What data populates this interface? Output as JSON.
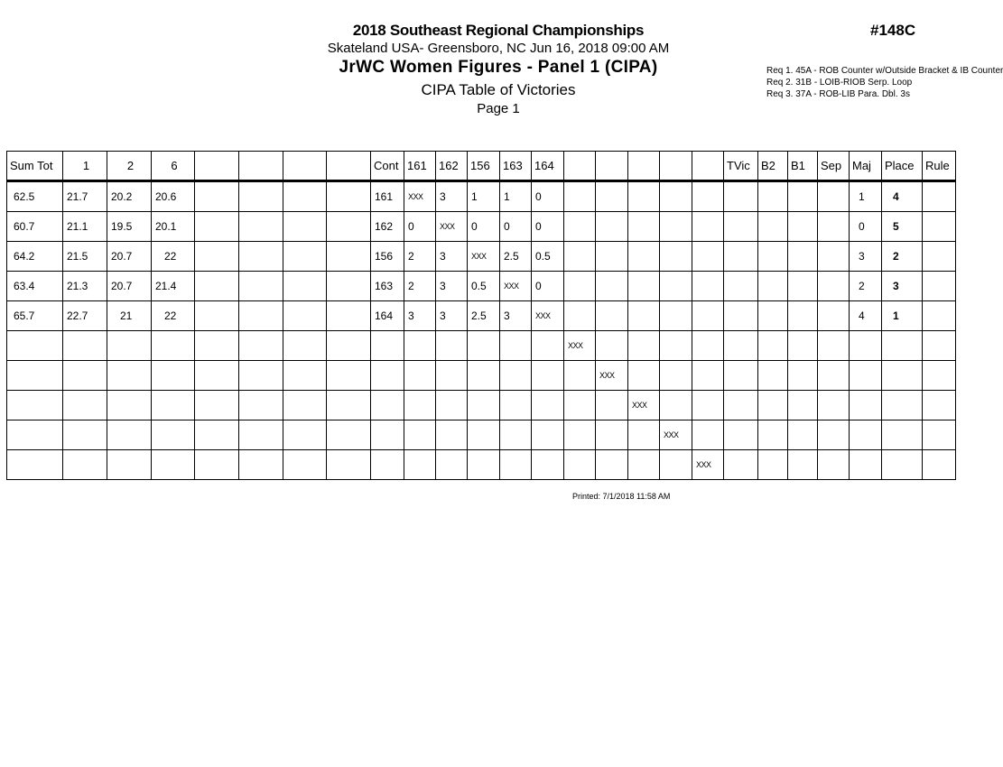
{
  "header": {
    "event": "2018 Southeast Regional Championships",
    "venue_date": "Skateland USA- Greensboro, NC  Jun 16, 2018  09:00 AM",
    "division": "JrWC Women Figures - Panel 1 (CIPA)",
    "report_title": "CIPA Table of Victories",
    "page": "Page 1",
    "event_number": "#148C"
  },
  "requirements": [
    "Req  1.  45A - ROB Counter w/Outside Bracket & IB Counter",
    "Req  2.  31B - LOIB-RIOB Serp. Loop",
    "Req  3.  37A - ROB-LIB Para. Dbl. 3s"
  ],
  "table": {
    "columns": [
      "Sum Tot",
      "1",
      "2",
      "6",
      "",
      "",
      "",
      "",
      "Cont",
      "161",
      "162",
      "156",
      "163",
      "164",
      "",
      "",
      "",
      "",
      "",
      "TVic",
      "B2",
      "B1",
      "Sep",
      "Maj",
      "Place",
      "Rule"
    ],
    "rows": [
      [
        "62.5",
        "21.7",
        "20.2",
        "20.6",
        "",
        "",
        "",
        "",
        "161",
        "XXX",
        "3",
        "1",
        "1",
        "0",
        "",
        "",
        "",
        "",
        "",
        "",
        "",
        "",
        "",
        "1",
        "4",
        ""
      ],
      [
        "60.7",
        "21.1",
        "19.5",
        "20.1",
        "",
        "",
        "",
        "",
        "162",
        "0",
        "XXX",
        "0",
        "0",
        "0",
        "",
        "",
        "",
        "",
        "",
        "",
        "",
        "",
        "",
        "0",
        "5",
        ""
      ],
      [
        "64.2",
        "21.5",
        "20.7",
        "22",
        "",
        "",
        "",
        "",
        "156",
        "2",
        "3",
        "XXX",
        "2.5",
        "0.5",
        "",
        "",
        "",
        "",
        "",
        "",
        "",
        "",
        "",
        "3",
        "2",
        ""
      ],
      [
        "63.4",
        "21.3",
        "20.7",
        "21.4",
        "",
        "",
        "",
        "",
        "163",
        "2",
        "3",
        "0.5",
        "XXX",
        "0",
        "",
        "",
        "",
        "",
        "",
        "",
        "",
        "",
        "",
        "2",
        "3",
        ""
      ],
      [
        "65.7",
        "22.7",
        "21",
        "22",
        "",
        "",
        "",
        "",
        "164",
        "3",
        "3",
        "2.5",
        "3",
        "XXX",
        "",
        "",
        "",
        "",
        "",
        "",
        "",
        "",
        "",
        "4",
        "1",
        ""
      ],
      [
        "",
        "",
        "",
        "",
        "",
        "",
        "",
        "",
        "",
        "",
        "",
        "",
        "",
        "",
        "XXX",
        "",
        "",
        "",
        "",
        "",
        "",
        "",
        "",
        "",
        "",
        ""
      ],
      [
        "",
        "",
        "",
        "",
        "",
        "",
        "",
        "",
        "",
        "",
        "",
        "",
        "",
        "",
        "",
        "XXX",
        "",
        "",
        "",
        "",
        "",
        "",
        "",
        "",
        "",
        ""
      ],
      [
        "",
        "",
        "",
        "",
        "",
        "",
        "",
        "",
        "",
        "",
        "",
        "",
        "",
        "",
        "",
        "",
        "XXX",
        "",
        "",
        "",
        "",
        "",
        "",
        "",
        "",
        ""
      ],
      [
        "",
        "",
        "",
        "",
        "",
        "",
        "",
        "",
        "",
        "",
        "",
        "",
        "",
        "",
        "",
        "",
        "",
        "XXX",
        "",
        "",
        "",
        "",
        "",
        "",
        "",
        ""
      ],
      [
        "",
        "",
        "",
        "",
        "",
        "",
        "",
        "",
        "",
        "",
        "",
        "",
        "",
        "",
        "",
        "",
        "",
        "",
        "XXX",
        "",
        "",
        "",
        "",
        "",
        "",
        ""
      ]
    ]
  },
  "footer": {
    "printed": "Printed:  7/1/2018  11:58 AM"
  }
}
